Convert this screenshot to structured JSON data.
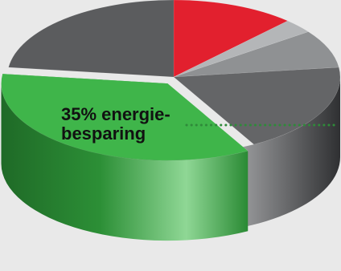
{
  "chart_data": {
    "type": "pie",
    "style": "3d-exploded",
    "slices": [
      {
        "name": "",
        "value": 12,
        "color": "#e2202e"
      },
      {
        "name": "",
        "value": 3,
        "color": "#b4b6b8"
      },
      {
        "name": "",
        "value": 8,
        "color": "#8f9193"
      },
      {
        "name": "",
        "value": 19,
        "color": "#646567"
      },
      {
        "name": "",
        "value": 35,
        "color": "#3fb54a",
        "exploded": true,
        "annotation": "35% energie-besparing"
      },
      {
        "name": "",
        "value": 23,
        "color": "#5b5c5e"
      }
    ],
    "annotation_lines": [
      "35% energie-",
      "besparing"
    ],
    "annotation_line_color": "#2f8a3a",
    "background": "#e9e9e9"
  }
}
